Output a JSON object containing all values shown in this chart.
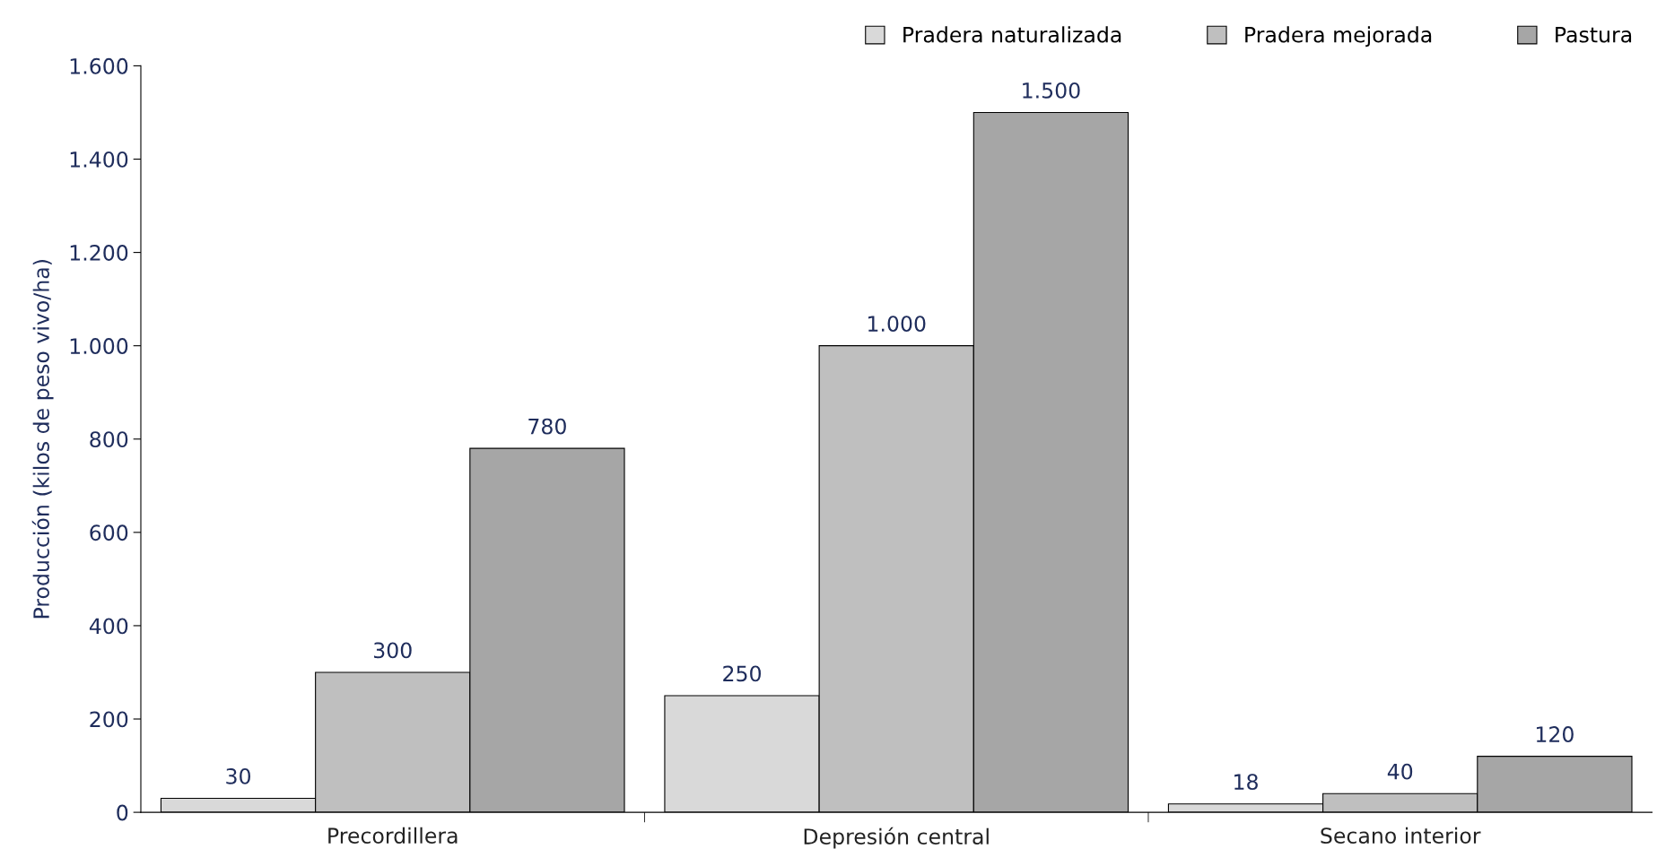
{
  "chart_data": {
    "type": "bar",
    "ylabel": "Producción (kilos de peso vivo/ha)",
    "categories": [
      "Precordillera",
      "Depresión central",
      "Secano interior"
    ],
    "series": [
      {
        "name": "Pradera naturalizada",
        "color": "#d9d9d9",
        "values": [
          30,
          250,
          18
        ],
        "value_labels": [
          "30",
          "250",
          "18"
        ]
      },
      {
        "name": "Pradera mejorada",
        "color": "#bfbfbf",
        "values": [
          300,
          1000,
          40
        ],
        "value_labels": [
          "300",
          "1.000",
          "40"
        ]
      },
      {
        "name": "Pastura",
        "color": "#a6a6a6",
        "values": [
          780,
          1500,
          120
        ],
        "value_labels": [
          "780",
          "1.500",
          "120"
        ]
      }
    ],
    "ylim": [
      0,
      1600
    ],
    "yticks": [
      0,
      200,
      400,
      600,
      800,
      {
        "value": 1000,
        "label": "1.000"
      },
      {
        "value": 1200,
        "label": "1.200"
      },
      {
        "value": 1400,
        "label": "1.400"
      },
      {
        "value": 1600,
        "label": "1.600"
      }
    ],
    "grid": false,
    "legend": "top right"
  }
}
